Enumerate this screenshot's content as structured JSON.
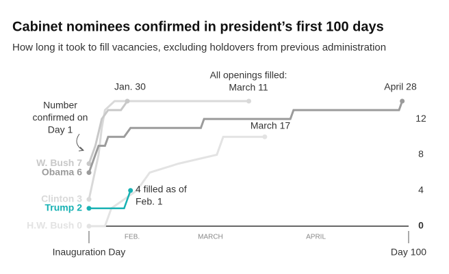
{
  "chart_data": {
    "type": "line",
    "title": "Cabinet nominees confirmed in president’s first 100 days",
    "subtitle": "How long it took to fill vacancies, excluding holdovers from previous administration",
    "xlim": [
      0,
      100
    ],
    "ylim": [
      0,
      14
    ],
    "yticks": [
      0,
      4,
      8,
      12
    ],
    "xticks": [
      {
        "value": 0,
        "label": "Inauguration Day"
      },
      {
        "value": 100,
        "label": "Day 100"
      }
    ],
    "month_labels": [
      {
        "value": 13.5,
        "label": "FEB."
      },
      {
        "value": 38,
        "label": "MARCH"
      },
      {
        "value": 71,
        "label": "APRIL"
      }
    ],
    "series": [
      {
        "name": "H.W. Bush 0",
        "color": "#e3e3e3",
        "x": [
          0,
          5,
          7,
          15,
          19,
          28,
          40,
          42,
          55
        ],
        "values": [
          0,
          0,
          2,
          4,
          6,
          7,
          8,
          10,
          10
        ]
      },
      {
        "name": "Clinton 3",
        "color": "#d9d9d9",
        "x": [
          0,
          3,
          4,
          5,
          8,
          50
        ],
        "values": [
          3,
          8,
          11,
          13,
          14,
          14
        ]
      },
      {
        "name": "W. Bush 7",
        "color": "#c8c8c8",
        "x": [
          0,
          2,
          4,
          6,
          10,
          12
        ],
        "values": [
          7,
          9,
          12,
          13,
          13,
          14
        ]
      },
      {
        "name": "Obama 6",
        "color": "#9b9b9b",
        "x": [
          0,
          2,
          3,
          5,
          6,
          11,
          13,
          35,
          36,
          63,
          64,
          97,
          98
        ],
        "values": [
          6,
          8,
          9,
          9,
          10,
          10,
          11,
          11,
          12,
          12,
          13,
          13,
          14
        ]
      },
      {
        "name": "Trump 2",
        "color": "#17b1b3",
        "x": [
          0,
          11,
          13
        ],
        "values": [
          2,
          2,
          4
        ]
      }
    ],
    "annotations": [
      {
        "lines": [
          "Jan. 30"
        ]
      },
      {
        "lines": [
          "All openings filled:",
          "March 11"
        ]
      },
      {
        "lines": [
          "April 28"
        ]
      },
      {
        "lines": [
          "March 17"
        ]
      },
      {
        "lines": [
          "4 filled as of",
          "Feb. 1"
        ]
      },
      {
        "lines": [
          "Number",
          "confirmed on",
          "Day 1"
        ]
      }
    ]
  }
}
